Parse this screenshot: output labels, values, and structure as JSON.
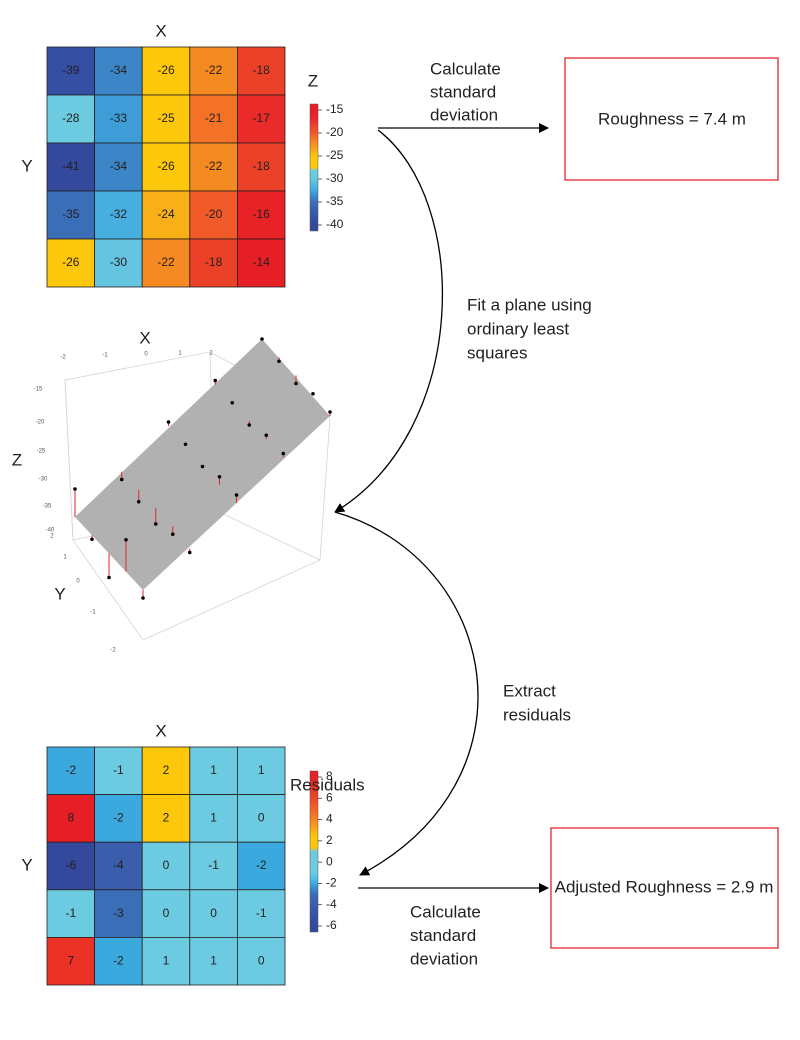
{
  "top_grid": {
    "x_label": "X",
    "y_label": "Y",
    "values": [
      [
        -39,
        -34,
        -26,
        -22,
        -18
      ],
      [
        -28,
        -33,
        -25,
        -21,
        -17
      ],
      [
        -41,
        -34,
        -26,
        -22,
        -18
      ],
      [
        -35,
        -32,
        -24,
        -20,
        -16
      ],
      [
        -26,
        -30,
        -22,
        -18,
        -14
      ]
    ],
    "colorbar": {
      "title": "Z",
      "ticks": [
        -15,
        -20,
        -25,
        -30,
        -35,
        -40
      ]
    }
  },
  "step_std_dev": [
    "Calculate",
    "standard",
    "deviation"
  ],
  "roughness": "Roughness = 7.4 m",
  "step_fit_plane": [
    "Fit a plane using",
    "ordinary least",
    "squares"
  ],
  "plot_3d": {
    "x_label": "X",
    "y_label": "Y",
    "z_label": "Z",
    "x_ticks": [
      -2,
      -1,
      0,
      1,
      2
    ],
    "y_ticks": [
      2,
      1,
      0,
      -1,
      -2
    ],
    "z_ticks": [
      -15,
      -20,
      -25,
      -30,
      -35,
      -40
    ]
  },
  "step_extract": [
    "Extract",
    "residuals"
  ],
  "residual_grid": {
    "x_label": "X",
    "y_label": "Y",
    "values": [
      [
        -2,
        -1,
        2,
        1,
        1
      ],
      [
        8,
        -2,
        2,
        1,
        0
      ],
      [
        -6,
        -4,
        0,
        -1,
        -2
      ],
      [
        -1,
        -3,
        0,
        0,
        -1
      ],
      [
        7,
        -2,
        1,
        1,
        0
      ]
    ],
    "colorbar": {
      "title": "Residuals",
      "ticks": [
        8,
        6,
        4,
        2,
        0,
        -2,
        -4,
        -6
      ]
    }
  },
  "adjusted_roughness": "Adjusted Roughness = 2.9 m",
  "step_std_dev_2": [
    "Calculate",
    "standard",
    "deviation"
  ]
}
